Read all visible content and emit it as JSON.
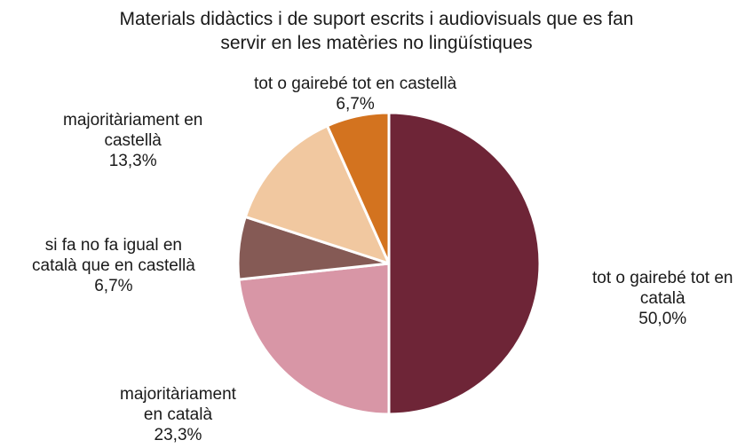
{
  "chart_data": {
    "type": "pie",
    "title_lines": [
      "Materials didàctics i de suport escrits i audiovisuals que es fan",
      "servir en les matèries no lingüístiques"
    ],
    "slices": [
      {
        "label_lines": [
          "tot o gairebé tot en",
          "català"
        ],
        "value": 50.0,
        "value_label": "50,0%",
        "color": "#6e2537"
      },
      {
        "label_lines": [
          "majoritàriament",
          "en català"
        ],
        "value": 23.3,
        "value_label": "23,3%",
        "color": "#d896a6"
      },
      {
        "label_lines": [
          "si fa no fa igual en",
          "català que en castellà"
        ],
        "value": 6.7,
        "value_label": "6,7%",
        "color": "#855a55"
      },
      {
        "label_lines": [
          "majoritàriament en",
          "castellà"
        ],
        "value": 13.3,
        "value_label": "13,3%",
        "color": "#f1c8a0"
      },
      {
        "label_lines": [
          "tot o gairebé tot en castellà"
        ],
        "value": 6.7,
        "value_label": "6,7%",
        "color": "#d3731f"
      }
    ],
    "start_angle_deg": 0,
    "direction": "clockwise",
    "legend": "none"
  }
}
